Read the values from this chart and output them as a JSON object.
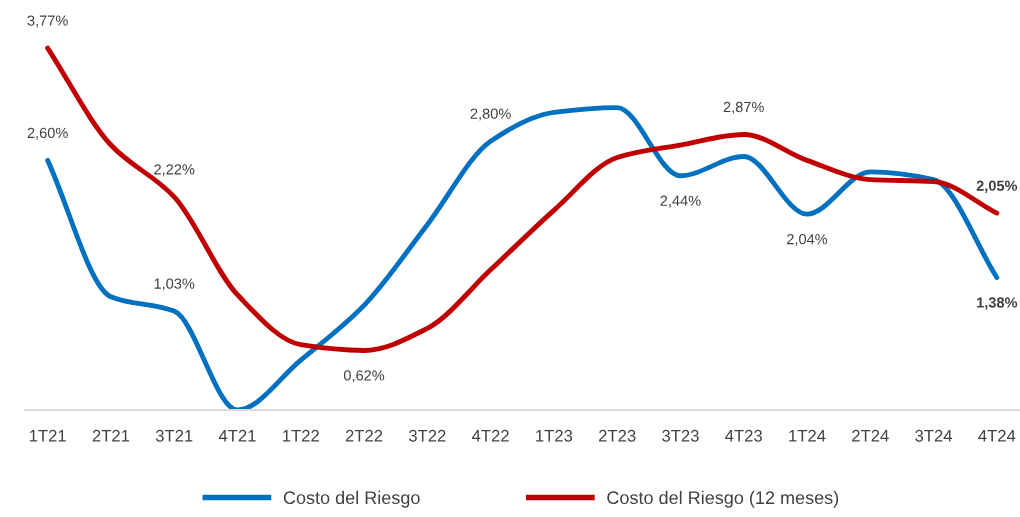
{
  "chart_data": {
    "type": "line",
    "categories": [
      "1T21",
      "2T21",
      "3T21",
      "4T21",
      "1T22",
      "2T22",
      "3T22",
      "4T22",
      "1T23",
      "2T23",
      "3T23",
      "4T23",
      "1T24",
      "2T24",
      "3T24",
      "4T24"
    ],
    "series": [
      {
        "name": "Costo del Riesgo",
        "color": "#0070c0",
        "values": [
          2.6,
          1.18,
          1.03,
          0.0,
          0.52,
          1.09,
          1.93,
          2.8,
          3.1,
          3.15,
          2.44,
          2.64,
          2.04,
          2.48,
          2.4,
          1.38
        ],
        "value_labels": [
          "2,60%",
          null,
          "1,03%",
          null,
          null,
          null,
          null,
          "2,80%",
          null,
          null,
          "2,44%",
          null,
          "2,04%",
          null,
          null,
          "1,38%"
        ]
      },
      {
        "name": "Costo del Riesgo (12 meses)",
        "color": "#c00000",
        "values": [
          3.77,
          2.76,
          2.22,
          1.2,
          0.68,
          0.62,
          0.85,
          1.46,
          2.08,
          2.63,
          2.76,
          2.87,
          2.6,
          2.4,
          2.38,
          2.05
        ],
        "value_labels": [
          "3,77%",
          null,
          "2,22%",
          null,
          null,
          "0,62%",
          null,
          null,
          null,
          null,
          null,
          "2,87%",
          null,
          null,
          null,
          "2,05%"
        ]
      }
    ],
    "tick_labels": "x",
    "grid": false,
    "legend": "bottom",
    "marker": "none",
    "line_style": "solid"
  }
}
